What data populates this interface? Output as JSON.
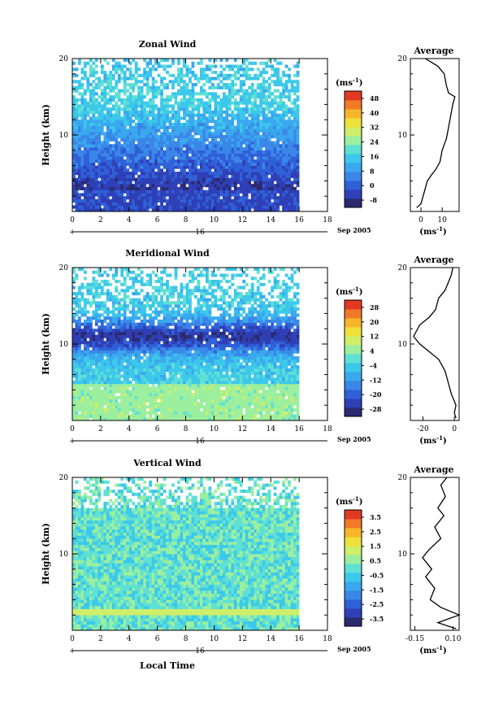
{
  "chart_data": [
    {
      "type": "heatmap",
      "title": "Zonal Wind",
      "ylabel": "Height (km)",
      "xlabel": "",
      "xlim": [
        0,
        18
      ],
      "ylim": [
        0,
        20
      ],
      "xticks": [
        "0",
        "2",
        "4",
        "6",
        "8",
        "10",
        "12",
        "14",
        "16",
        "18"
      ],
      "yticks": [
        "10",
        "20"
      ],
      "date_label": "16",
      "date_suffix": "Sep 2005",
      "colorbar": {
        "unit_base": "(ms",
        "unit_exp": "-1",
        "unit_close": ")",
        "ticks": [
          "48",
          "40",
          "32",
          "24",
          "16",
          "8",
          "0",
          "-8"
        ],
        "min": -12,
        "max": 52
      },
      "profile": {
        "title": "Average",
        "xticks": [
          "0",
          "10"
        ],
        "xlim": [
          -5,
          18
        ],
        "unit_base": "(ms",
        "unit_exp": "-1",
        "unit_close": ")",
        "points": [
          [
            -2,
            0.5
          ],
          [
            0,
            1
          ],
          [
            1,
            2
          ],
          [
            2,
            3
          ],
          [
            3,
            4
          ],
          [
            5,
            4.8
          ],
          [
            7,
            5.5
          ],
          [
            9,
            6.5
          ],
          [
            10,
            8
          ],
          [
            12,
            9.5
          ],
          [
            13,
            11
          ],
          [
            14,
            12.5
          ],
          [
            15,
            14
          ],
          [
            16,
            15
          ],
          [
            13,
            15.5
          ],
          [
            12,
            16.5
          ],
          [
            11,
            18
          ],
          [
            8,
            19
          ],
          [
            5,
            19.5
          ],
          [
            2,
            20
          ]
        ]
      },
      "field": {
        "base": 6,
        "trend": 0.9,
        "peak": 14,
        "min_value": -10
      }
    },
    {
      "type": "heatmap",
      "title": "Meridional Wind",
      "ylabel": "Height (km)",
      "xlabel": "",
      "xlim": [
        0,
        18
      ],
      "ylim": [
        0,
        20
      ],
      "xticks": [
        "0",
        "2",
        "4",
        "6",
        "8",
        "10",
        "12",
        "14",
        "16",
        "18"
      ],
      "yticks": [
        "10",
        "20"
      ],
      "date_label": "16",
      "date_suffix": "Sep 2005",
      "colorbar": {
        "unit_base": "(ms",
        "unit_exp": "-1",
        "unit_close": ")",
        "ticks": [
          "28",
          "20",
          "12",
          "4",
          "-4",
          "-12",
          "-20",
          "-28"
        ],
        "min": -32,
        "max": 32
      },
      "profile": {
        "title": "Average",
        "xticks": [
          "-20",
          "0"
        ],
        "xlim": [
          -28,
          3
        ],
        "unit_base": "(ms",
        "unit_exp": "-1",
        "unit_close": ")",
        "points": [
          [
            1,
            0.3
          ],
          [
            0,
            1
          ],
          [
            1,
            2
          ],
          [
            -2,
            3.5
          ],
          [
            -4,
            5
          ],
          [
            -6,
            6.5
          ],
          [
            -10,
            8
          ],
          [
            -16,
            9
          ],
          [
            -22,
            10
          ],
          [
            -26,
            11
          ],
          [
            -22,
            12.5
          ],
          [
            -16,
            13.5
          ],
          [
            -12,
            14.5
          ],
          [
            -10,
            16
          ],
          [
            -6,
            17
          ],
          [
            -4,
            18
          ],
          [
            -2,
            19
          ],
          [
            -1,
            20
          ]
        ]
      },
      "field": {
        "base": -4,
        "trend": -1.2,
        "peak": -24,
        "min_value": -30
      }
    },
    {
      "type": "heatmap",
      "title": "Vertical Wind",
      "ylabel": "Height (km)",
      "xlabel": "Local Time",
      "xlim": [
        0,
        18
      ],
      "ylim": [
        0,
        20
      ],
      "xticks": [
        "0",
        "2",
        "4",
        "6",
        "8",
        "10",
        "12",
        "14",
        "16",
        "18"
      ],
      "yticks": [
        "10",
        "20"
      ],
      "date_label": "16",
      "date_suffix": "Sep 2005",
      "colorbar": {
        "unit_base": "(ms",
        "unit_exp": "-1",
        "unit_close": ")",
        "ticks": [
          "3.5",
          "2.5",
          "1.5",
          "0.5",
          "-0.5",
          "-1.5",
          "-2.5",
          "-3.5"
        ],
        "min": -4,
        "max": 4
      },
      "profile": {
        "title": "Average",
        "xticks": [
          "-0.15",
          "0.10"
        ],
        "xlim": [
          -0.18,
          0.14
        ],
        "unit_base": "(ms",
        "unit_exp": "-1",
        "unit_close": ")",
        "points": [
          [
            0.12,
            0.2
          ],
          [
            0.0,
            1
          ],
          [
            0.14,
            2
          ],
          [
            0.02,
            3
          ],
          [
            -0.05,
            4
          ],
          [
            -0.02,
            5.5
          ],
          [
            -0.08,
            7
          ],
          [
            -0.04,
            8
          ],
          [
            -0.1,
            9.5
          ],
          [
            -0.06,
            10.5
          ],
          [
            0.02,
            12
          ],
          [
            -0.02,
            13.5
          ],
          [
            0.04,
            15
          ],
          [
            0.0,
            16
          ],
          [
            0.05,
            17.5
          ],
          [
            0.02,
            19
          ],
          [
            0.06,
            20
          ]
        ]
      },
      "field": {
        "base": 0,
        "trend": 0,
        "peak": 0.3,
        "min_value": -0.8
      }
    }
  ],
  "colormap": [
    "#2b2a6e",
    "#2f3fb5",
    "#2f60d8",
    "#3a87e8",
    "#3aa8ee",
    "#3cc8ea",
    "#5fe0d4",
    "#9bef9e",
    "#cfee6a",
    "#f0e03a",
    "#f7b52a",
    "#f07a28",
    "#e23a22"
  ]
}
